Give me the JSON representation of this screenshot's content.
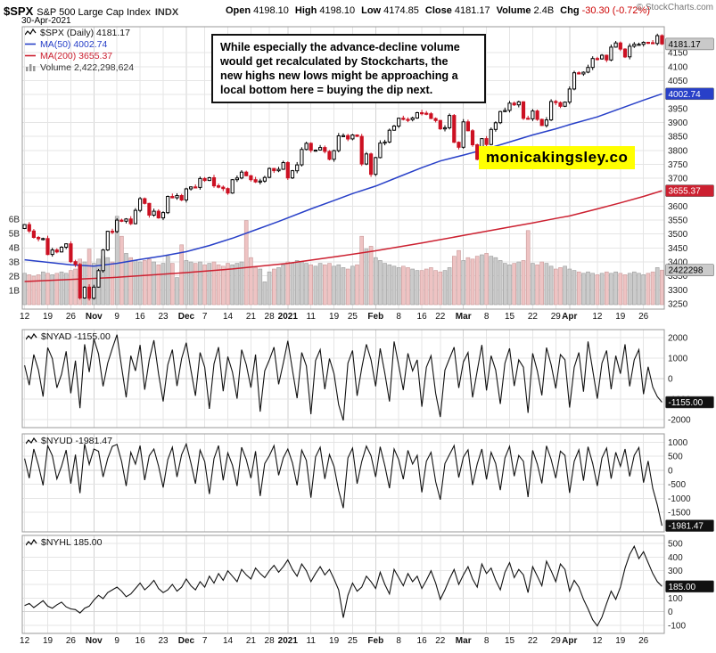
{
  "header": {
    "symbol": "$SPX",
    "name": "S&P 500 Large Cap Index",
    "exchange": "INDX",
    "date": "30-Apr-2021",
    "copyright": "© StockCharts.com",
    "quote": {
      "open_label": "Open",
      "open": "4198.10",
      "high_label": "High",
      "high": "4198.10",
      "low_label": "Low",
      "low": "4174.85",
      "close_label": "Close",
      "close": "4181.17",
      "volume_label": "Volume",
      "volume": "2.4B",
      "chg_label": "Chg",
      "chg": "-30.30 (-0.72%)"
    }
  },
  "legend": {
    "series": "$SPX (Daily) 4181.17",
    "ma50": "MA(50) 4002.74",
    "ma200": "MA(200) 3655.37",
    "volume": "Volume 2,422,298,624"
  },
  "annotation": {
    "text": "While especially the advance-decline volume\nwould get recalculated by Stockcharts, the\nnew highs new lows might be approaching a\nlocal bottom here = buying the dip next."
  },
  "watermark": {
    "text": "monicakingsley.co"
  },
  "colors": {
    "ma50": "#2840c8",
    "ma200": "#cc2030",
    "down_candle": "#cc1122",
    "up_candle_fill": "#ffffff",
    "volume_up": "#cbcbcb",
    "volume_down": "#eec3c3",
    "watermark_bg": "#ffff00",
    "grid": "#e5e5e5"
  },
  "chart_data": [
    {
      "type": "candlestick+volume",
      "title": "$SPX (Daily)",
      "last": 4181.17,
      "first_open": 3520,
      "ma50_last": 4002.74,
      "ma200_last": 3655.37,
      "ma50_color": "#2840c8",
      "ma200_color": "#cc2030",
      "down_color": "#cc1122",
      "volume_last": 2422298624,
      "y_domain": [
        3231,
        4243
      ],
      "y_ticks": [
        4150,
        4100,
        4050,
        4000,
        3950,
        3900,
        3850,
        3800,
        3750,
        3700,
        3650,
        3600,
        3550,
        3500,
        3450,
        3400,
        3350,
        3300,
        3250
      ],
      "volume_axis": {
        "labels": [
          "6B",
          "5B",
          "4B",
          "3B",
          "2B",
          "1B"
        ],
        "values": [
          6,
          5,
          4,
          3,
          2,
          1
        ]
      },
      "x_ticks": [
        {
          "l": "12",
          "i": 0
        },
        {
          "l": "19",
          "i": 5
        },
        {
          "l": "26",
          "i": 10
        },
        {
          "l": "Nov",
          "i": 15,
          "b": 1
        },
        {
          "l": "9",
          "i": 20
        },
        {
          "l": "16",
          "i": 25
        },
        {
          "l": "23",
          "i": 30
        },
        {
          "l": "Dec",
          "i": 35,
          "b": 1
        },
        {
          "l": "7",
          "i": 39
        },
        {
          "l": "14",
          "i": 44
        },
        {
          "l": "21",
          "i": 49
        },
        {
          "l": "28",
          "i": 53
        },
        {
          "l": "2021",
          "i": 57,
          "b": 1
        },
        {
          "l": "11",
          "i": 62
        },
        {
          "l": "19",
          "i": 67
        },
        {
          "l": "25",
          "i": 71
        },
        {
          "l": "Feb",
          "i": 76,
          "b": 1
        },
        {
          "l": "8",
          "i": 81
        },
        {
          "l": "16",
          "i": 86
        },
        {
          "l": "22",
          "i": 90
        },
        {
          "l": "Mar",
          "i": 95,
          "b": 1
        },
        {
          "l": "8",
          "i": 100
        },
        {
          "l": "15",
          "i": 105
        },
        {
          "l": "22",
          "i": 110
        },
        {
          "l": "29",
          "i": 115
        },
        {
          "l": "Apr",
          "i": 118,
          "b": 1
        },
        {
          "l": "12",
          "i": 124
        },
        {
          "l": "19",
          "i": 129
        },
        {
          "l": "26",
          "i": 134
        }
      ],
      "closes": [
        3534,
        3511,
        3488,
        3483,
        3484,
        3427,
        3443,
        3436,
        3453,
        3465,
        3401,
        3391,
        3271,
        3310,
        3270,
        3310,
        3369,
        3443,
        3510,
        3509,
        3550,
        3546,
        3554,
        3537,
        3585,
        3627,
        3610,
        3568,
        3582,
        3558,
        3577,
        3635,
        3630,
        3638,
        3622,
        3662,
        3669,
        3667,
        3699,
        3692,
        3702,
        3673,
        3668,
        3663,
        3647,
        3695,
        3701,
        3722,
        3709,
        3695,
        3687,
        3690,
        3703,
        3735,
        3727,
        3732,
        3756,
        3701,
        3727,
        3748,
        3803,
        3825,
        3800,
        3801,
        3810,
        3796,
        3768,
        3799,
        3852,
        3853,
        3841,
        3855,
        3850,
        3751,
        3787,
        3714,
        3774,
        3826,
        3830,
        3872,
        3887,
        3915,
        3911,
        3910,
        3916,
        3935,
        3933,
        3931,
        3914,
        3907,
        3877,
        3881,
        3925,
        3829,
        3811,
        3902,
        3870,
        3820,
        3768,
        3842,
        3821,
        3875,
        3899,
        3939,
        3943,
        3969,
        3963,
        3974,
        3915,
        3913,
        3941,
        3911,
        3889,
        3909,
        3975,
        3971,
        3958,
        3973,
        4020,
        4078,
        4074,
        4080,
        4097,
        4129,
        4128,
        4141,
        4124,
        4170,
        4185,
        4163,
        4135,
        4173,
        4180,
        4180,
        4187,
        4186,
        4183,
        4211,
        4181.17
      ],
      "volumes_b": [
        2.2,
        2.1,
        2.0,
        2.1,
        2.3,
        2.2,
        2.1,
        2.2,
        2.3,
        2.2,
        2.4,
        2.5,
        3.2,
        3.0,
        3.9,
        2.9,
        3.2,
        3.4,
        3.3,
        3.0,
        6.2,
        4.8,
        3.6,
        3.3,
        3.1,
        3.0,
        3.1,
        3.2,
        3.0,
        2.8,
        2.9,
        3.4,
        2.9,
        1.9,
        4.2,
        3.1,
        3.0,
        2.9,
        3.0,
        2.8,
        2.9,
        3.0,
        2.8,
        2.7,
        2.9,
        2.8,
        2.9,
        3.0,
        5.9,
        3.3,
        2.6,
        2.5,
        1.6,
        2.3,
        2.5,
        2.6,
        2.8,
        3.0,
        2.9,
        3.1,
        3.0,
        2.9,
        2.8,
        2.7,
        2.9,
        2.8,
        2.9,
        2.7,
        2.8,
        2.6,
        2.5,
        2.7,
        2.8,
        4.8,
        3.9,
        4.1,
        3.3,
        3.1,
        2.9,
        2.8,
        2.7,
        2.6,
        2.7,
        2.6,
        2.5,
        2.4,
        2.4,
        2.5,
        2.6,
        2.4,
        2.3,
        2.4,
        2.6,
        3.4,
        3.8,
        3.1,
        3.3,
        3.2,
        3.4,
        3.5,
        3.6,
        3.4,
        3.3,
        3.1,
        2.9,
        2.8,
        2.9,
        3.0,
        3.1,
        5.2,
        2.9,
        2.8,
        3.0,
        2.9,
        2.7,
        2.5,
        2.6,
        2.7,
        2.5,
        2.4,
        2.3,
        2.2,
        2.3,
        2.2,
        2.1,
        2.2,
        2.3,
        2.2,
        2.3,
        2.2,
        2.1,
        2.2,
        2.3,
        2.2,
        2.1,
        2.2,
        2.3,
        2.6,
        2.422
      ],
      "ma50_anchors": [
        [
          0,
          3408
        ],
        [
          10,
          3390
        ],
        [
          15,
          3385
        ],
        [
          20,
          3395
        ],
        [
          25,
          3409
        ],
        [
          30,
          3422
        ],
        [
          35,
          3437
        ],
        [
          40,
          3459
        ],
        [
          45,
          3485
        ],
        [
          50,
          3515
        ],
        [
          55,
          3545
        ],
        [
          57,
          3558
        ],
        [
          62,
          3590
        ],
        [
          67,
          3620
        ],
        [
          71,
          3645
        ],
        [
          76,
          3672
        ],
        [
          81,
          3705
        ],
        [
          86,
          3738
        ],
        [
          90,
          3762
        ],
        [
          95,
          3783
        ],
        [
          100,
          3805
        ],
        [
          105,
          3830
        ],
        [
          110,
          3855
        ],
        [
          115,
          3877
        ],
        [
          118,
          3892
        ],
        [
          124,
          3920
        ],
        [
          129,
          3950
        ],
        [
          134,
          3980
        ],
        [
          138,
          4002.74
        ]
      ],
      "ma200_anchors": [
        [
          0,
          3330
        ],
        [
          20,
          3345
        ],
        [
          35,
          3362
        ],
        [
          45,
          3375
        ],
        [
          57,
          3395
        ],
        [
          67,
          3418
        ],
        [
          76,
          3440
        ],
        [
          86,
          3468
        ],
        [
          95,
          3495
        ],
        [
          105,
          3525
        ],
        [
          110,
          3540
        ],
        [
          115,
          3556
        ],
        [
          118,
          3565
        ],
        [
          124,
          3590
        ],
        [
          129,
          3612
        ],
        [
          134,
          3635
        ],
        [
          138,
          3655.37
        ]
      ],
      "price_tags": [
        {
          "text": "4181.17",
          "value": 4181.17,
          "bg": "#c9c9c9",
          "fg": "#000"
        },
        {
          "text": "4002.74",
          "value": 4002.74,
          "bg": "#2840c8",
          "fg": "#fff"
        },
        {
          "text": "3655.37",
          "value": 3655.37,
          "bg": "#cc2030",
          "fg": "#fff"
        }
      ],
      "volume_tag": {
        "text": "2422298",
        "value_b": 2.422
      }
    },
    {
      "type": "line",
      "symbol": "$NYAD",
      "label": "$NYAD -1155.00",
      "last": -1155.0,
      "tag": "-1155.00",
      "y_ticks": [
        2000,
        1000,
        0,
        -1000,
        -2000
      ],
      "y_domain": [
        -2400,
        2400
      ],
      "values": [
        650,
        -320,
        1180,
        420,
        -880,
        1520,
        980,
        -450,
        210,
        1340,
        -720,
        880,
        -1450,
        1680,
        320,
        1950,
        1210,
        -380,
        760,
        1480,
        2150,
        560,
        -920,
        1120,
        380,
        1650,
        -540,
        920,
        1880,
        240,
        -1120,
        680,
        1420,
        -360,
        980,
        1760,
        420,
        -840,
        1280,
        560,
        -1480,
        720,
        1540,
        -620,
        1080,
        320,
        -980,
        1420,
        680,
        -440,
        1180,
        -1620,
        380,
        920,
        1540,
        -280,
        760,
        1850,
        420,
        -960,
        1280,
        620,
        -1740,
        880,
        1420,
        -520,
        980,
        240,
        -1280,
        -2050,
        760,
        1380,
        -840,
        520,
        1680,
        920,
        -380,
        1480,
        260,
        -1120,
        1820,
        640,
        -560,
        1240,
        380,
        920,
        -1380,
        560,
        1120,
        -720,
        -1880,
        420,
        980,
        1540,
        -460,
        820,
        1280,
        -920,
        380,
        1650,
        -580,
        1120,
        420,
        -1240,
        760,
        1480,
        -360,
        920,
        560,
        -1680,
        1240,
        380,
        -820,
        1520,
        680,
        -480,
        1180,
        920,
        -1420,
        560,
        1280,
        -640,
        1820,
        420,
        -980,
        760,
        1380,
        -520,
        1120,
        240,
        1680,
        -380,
        920,
        1420,
        -760,
        580,
        -420,
        -880,
        -1155
      ]
    },
    {
      "type": "line",
      "symbol": "$NYUD",
      "label": "$NYUD -1981.47",
      "last": -1981.47,
      "tag": "-1981.47",
      "y_ticks": [
        1000,
        500,
        0,
        -500,
        -1000,
        -1500
      ],
      "y_domain": [
        -2200,
        1300
      ],
      "values": [
        420,
        -280,
        760,
        180,
        -540,
        880,
        520,
        -310,
        140,
        720,
        -480,
        560,
        -820,
        940,
        210,
        760,
        680,
        -240,
        420,
        850,
        920,
        310,
        -560,
        640,
        220,
        880,
        -350,
        520,
        760,
        150,
        -620,
        380,
        820,
        -240,
        560,
        940,
        260,
        -480,
        720,
        310,
        -850,
        420,
        880,
        -360,
        620,
        180,
        -560,
        820,
        380,
        -280,
        680,
        -920,
        240,
        520,
        880,
        -180,
        440,
        760,
        260,
        -540,
        720,
        350,
        -980,
        480,
        820,
        -310,
        560,
        140,
        -720,
        -1350,
        440,
        790,
        -480,
        310,
        860,
        520,
        -240,
        840,
        160,
        -640,
        760,
        370,
        -320,
        710,
        220,
        530,
        -790,
        320,
        640,
        -410,
        -1050,
        240,
        560,
        880,
        -260,
        470,
        730,
        -530,
        220,
        760,
        -330,
        640,
        240,
        -710,
        440,
        850,
        -210,
        530,
        320,
        -960,
        710,
        220,
        -470,
        870,
        390,
        -280,
        680,
        530,
        -810,
        320,
        730,
        -370,
        840,
        240,
        -560,
        440,
        790,
        -300,
        640,
        140,
        760,
        -220,
        530,
        810,
        -440,
        330,
        -650,
        -1240,
        -1981.47
      ]
    },
    {
      "type": "line",
      "symbol": "$NYHL",
      "label": "$NYHL 185.00",
      "last": 185.0,
      "tag": "185.00",
      "y_ticks": [
        500,
        400,
        300,
        200,
        100,
        0,
        -100
      ],
      "y_domain": [
        -160,
        560
      ],
      "values": [
        45,
        60,
        30,
        55,
        80,
        40,
        25,
        50,
        70,
        35,
        20,
        15,
        -10,
        25,
        40,
        85,
        120,
        95,
        140,
        160,
        180,
        150,
        110,
        130,
        170,
        210,
        160,
        190,
        230,
        170,
        140,
        160,
        200,
        150,
        180,
        240,
        190,
        160,
        220,
        180,
        260,
        210,
        280,
        230,
        300,
        260,
        220,
        310,
        270,
        240,
        320,
        280,
        250,
        300,
        340,
        290,
        330,
        380,
        310,
        260,
        350,
        300,
        220,
        280,
        330,
        270,
        310,
        240,
        160,
        -45,
        120,
        210,
        150,
        180,
        260,
        220,
        170,
        290,
        200,
        130,
        310,
        250,
        190,
        280,
        220,
        260,
        170,
        230,
        300,
        210,
        90,
        160,
        240,
        310,
        200,
        270,
        330,
        240,
        180,
        350,
        280,
        320,
        230,
        160,
        290,
        360,
        250,
        310,
        270,
        140,
        330,
        260,
        190,
        370,
        300,
        220,
        350,
        310,
        150,
        230,
        180,
        90,
        20,
        -60,
        -105,
        -40,
        60,
        150,
        90,
        180,
        320,
        420,
        480,
        390,
        440,
        360,
        280,
        220,
        185
      ]
    }
  ]
}
